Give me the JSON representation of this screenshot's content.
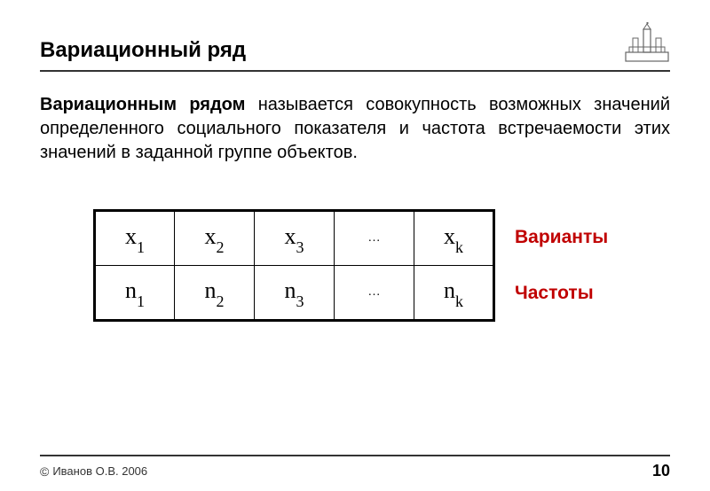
{
  "title": "Вариационный ряд",
  "definition": {
    "term": "Вариационным рядом",
    "rest": " называется совокупность возможных значений определенного социального показателя и частота встречаемости этих значений в заданной группе объектов."
  },
  "table": {
    "rows": [
      {
        "sym": "x",
        "subs": [
          "1",
          "2",
          "3",
          "…",
          "k"
        ]
      },
      {
        "sym": "n",
        "subs": [
          "1",
          "2",
          "3",
          "…",
          "k"
        ]
      }
    ]
  },
  "labels": {
    "variants": "Варианты",
    "frequencies": "Частоты"
  },
  "footer": {
    "copyright": "Иванов О.В. 2006",
    "page": "10"
  },
  "colors": {
    "label_color": "#c00000",
    "rule_color": "#333333",
    "text_color": "#000000"
  }
}
